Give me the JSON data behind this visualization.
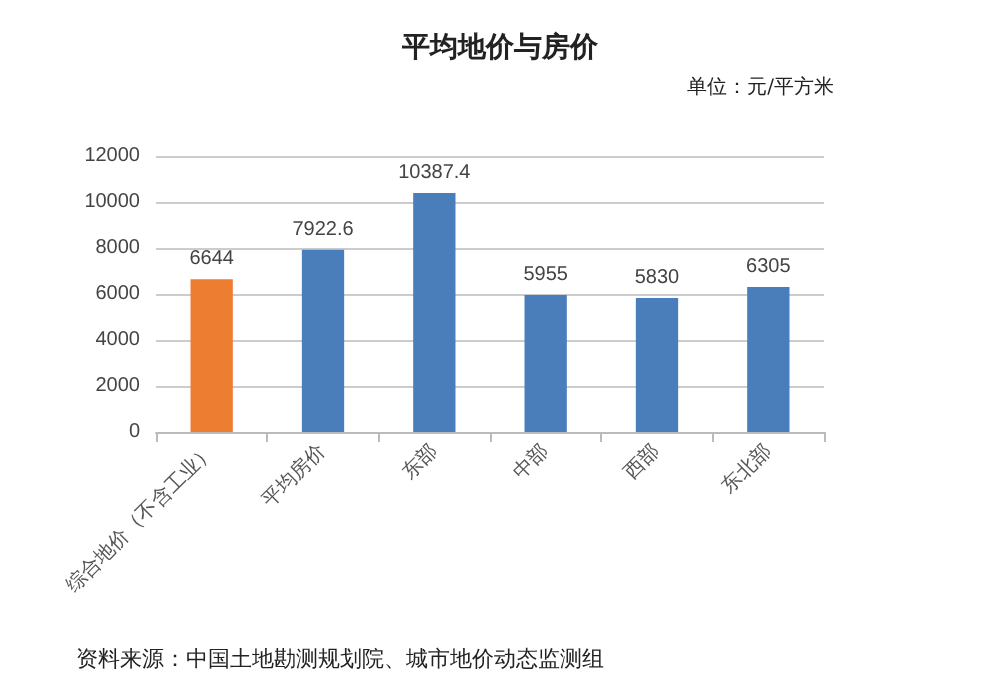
{
  "chart_data": {
    "type": "bar",
    "title": "平均地价与房价",
    "subtitle": "单位：元/平方米",
    "categories": [
      "综合地价（不含工业）",
      "平均房价",
      "东部",
      "中部",
      "西部",
      "东北部"
    ],
    "values": [
      6644,
      7922.6,
      10387.4,
      5955,
      5830,
      6305
    ],
    "colors": [
      "#ed7d31",
      "#4a7ebb",
      "#4a7ebb",
      "#4a7ebb",
      "#4a7ebb",
      "#4a7ebb"
    ],
    "ylim": [
      0,
      12000
    ],
    "yticks": [
      0,
      2000,
      4000,
      6000,
      8000,
      10000,
      12000
    ],
    "grid": "y",
    "data_labels": true,
    "annotations": [
      "资料来源：中国土地勘测规划院、城市地价动态监测组"
    ]
  }
}
